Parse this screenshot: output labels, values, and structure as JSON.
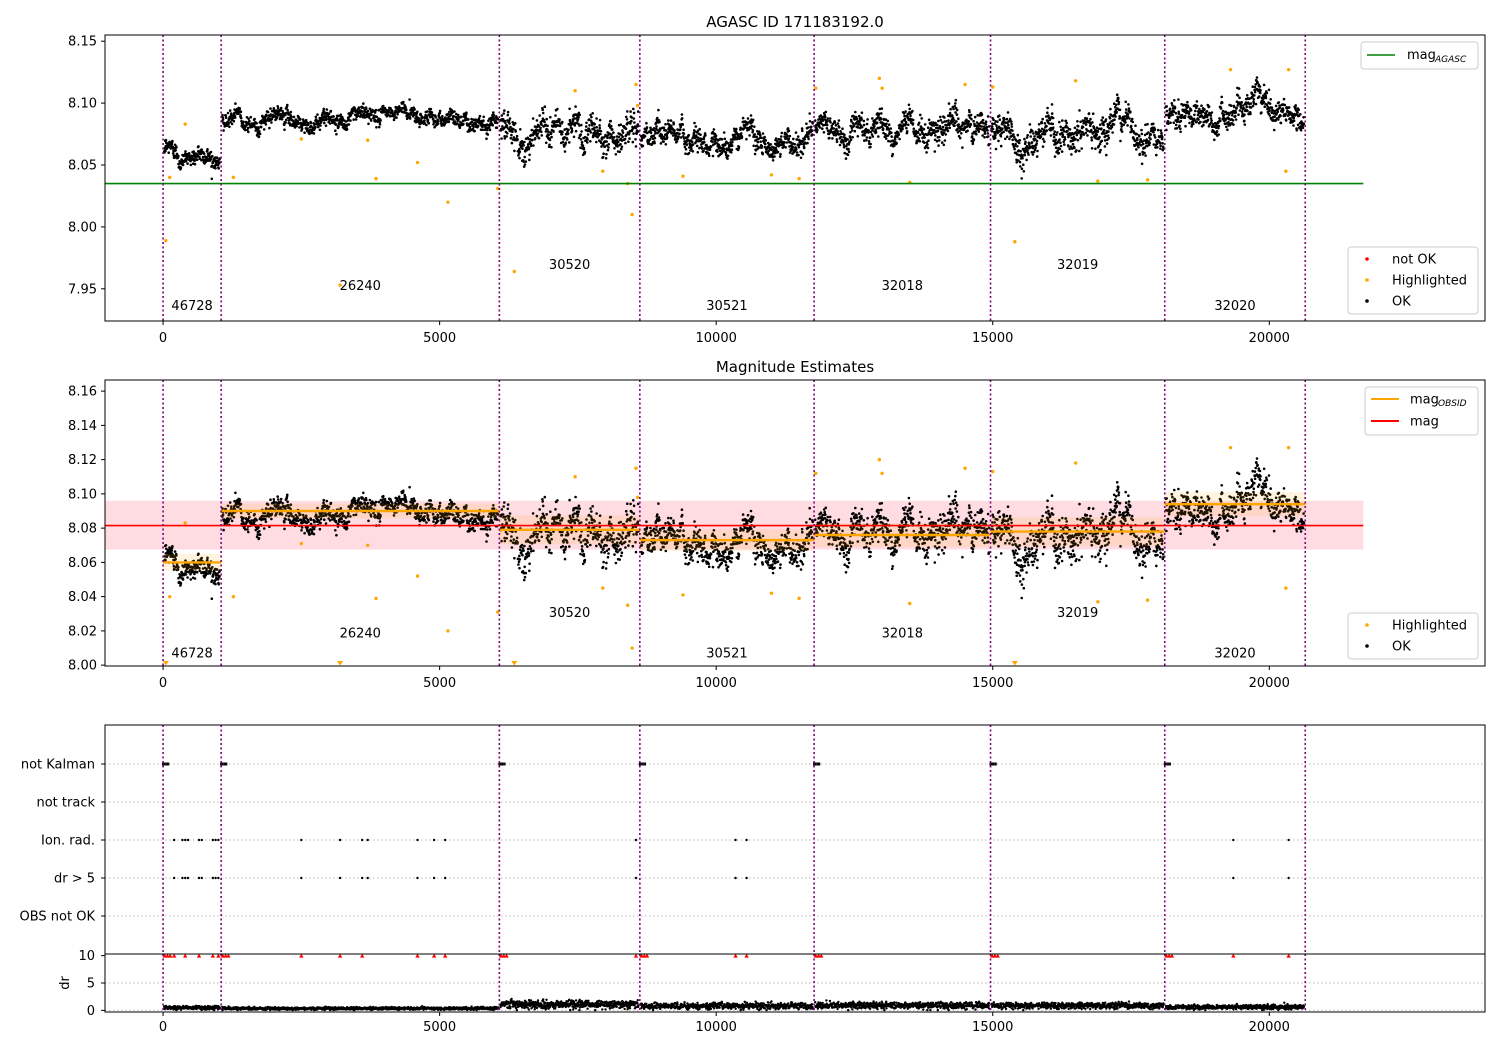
{
  "figure": {
    "title": "AGASC ID 171183192.0"
  },
  "colors": {
    "ok": "#000000",
    "highlighted": "#ffa500",
    "not_ok": "#ff0000",
    "obsid_line": "#800080",
    "mag_agasc": "#008000",
    "mag_obsid": "#ffa500",
    "mag": "#ff0000",
    "band": "#ffc0cb"
  },
  "chart_data": [
    {
      "type": "scatter",
      "title": "AGASC ID 171183192.0",
      "xlim": [
        -1050,
        23900
      ],
      "ylim": [
        7.924,
        8.155
      ],
      "xticks": [
        0,
        5000,
        10000,
        15000,
        20000
      ],
      "yticks": [
        7.95,
        8.0,
        8.05,
        8.1,
        8.15
      ],
      "obsid_boundaries": [
        0,
        1050,
        6080,
        8620,
        11770,
        14960,
        18110,
        20650
      ],
      "segments": [
        {
          "obsid": "46728",
          "x0": 0,
          "x1": 1050,
          "mean": 8.06,
          "spread": 0.007,
          "trend": 0
        },
        {
          "obsid": "26240",
          "x0": 1050,
          "x1": 6080,
          "mean": 8.089,
          "spread": 0.006,
          "trend": 0.008
        },
        {
          "obsid": "30520",
          "x0": 6080,
          "x1": 8620,
          "mean": 8.078,
          "spread": 0.012,
          "trend": -0.006
        },
        {
          "obsid": "30521",
          "x0": 8620,
          "x1": 11770,
          "mean": 8.073,
          "spread": 0.009,
          "trend": 0
        },
        {
          "obsid": "32018",
          "x0": 11770,
          "x1": 14960,
          "mean": 8.077,
          "spread": 0.01,
          "trend": 0
        },
        {
          "obsid": "32019",
          "x0": 14960,
          "x1": 18110,
          "mean": 8.078,
          "spread": 0.012,
          "trend": 0
        },
        {
          "obsid": "32020",
          "x0": 18110,
          "x1": 20650,
          "mean": 8.094,
          "spread": 0.01,
          "trend": 0
        }
      ],
      "obsid_labels": [
        {
          "text": "46728",
          "x": 525,
          "y": 7.933
        },
        {
          "text": "26240",
          "x": 3565,
          "y": 7.949
        },
        {
          "text": "30520",
          "x": 7350,
          "y": 7.966
        },
        {
          "text": "30521",
          "x": 10195,
          "y": 7.933
        },
        {
          "text": "32018",
          "x": 13365,
          "y": 7.949
        },
        {
          "text": "32019",
          "x": 16535,
          "y": 7.966
        },
        {
          "text": "32020",
          "x": 19380,
          "y": 7.933
        }
      ],
      "lines": [
        {
          "name": "mag_AGASC",
          "y": 8.035,
          "x0": -1050,
          "x1": 21700,
          "color": "#008000"
        }
      ],
      "highlighted_points": [
        [
          50,
          7.989
        ],
        [
          120,
          8.04
        ],
        [
          400,
          8.083
        ],
        [
          1270,
          8.04
        ],
        [
          2500,
          8.071
        ],
        [
          3200,
          7.953
        ],
        [
          3700,
          8.07
        ],
        [
          3850,
          8.039
        ],
        [
          4600,
          8.052
        ],
        [
          5150,
          8.02
        ],
        [
          6050,
          8.031
        ],
        [
          6350,
          7.964
        ],
        [
          7450,
          8.11
        ],
        [
          7950,
          8.045
        ],
        [
          8400,
          8.035
        ],
        [
          8480,
          8.01
        ],
        [
          8550,
          8.115
        ],
        [
          8580,
          8.098
        ],
        [
          9400,
          8.041
        ],
        [
          11000,
          8.042
        ],
        [
          11500,
          8.039
        ],
        [
          11800,
          8.112
        ],
        [
          12950,
          8.12
        ],
        [
          13000,
          8.112
        ],
        [
          13500,
          8.036
        ],
        [
          14500,
          8.115
        ],
        [
          15000,
          8.113
        ],
        [
          15400,
          7.988
        ],
        [
          16500,
          8.118
        ],
        [
          16900,
          8.037
        ],
        [
          17800,
          8.038
        ],
        [
          19300,
          8.127
        ],
        [
          20300,
          8.045
        ],
        [
          20350,
          8.127
        ]
      ],
      "legend": {
        "position": "top-right",
        "entries": [
          {
            "label": "mag",
            "subscript": "AGASC",
            "color": "#008000"
          }
        ]
      },
      "legend2": {
        "position": "lower-right",
        "entries": [
          {
            "label": "not OK",
            "color": "#ff0000"
          },
          {
            "label": "Highlighted",
            "color": "#ffa500"
          },
          {
            "label": "OK",
            "color": "#000000"
          }
        ]
      }
    },
    {
      "type": "scatter",
      "title": "Magnitude Estimates",
      "xlim": [
        -1050,
        23900
      ],
      "ylim": [
        7.9995,
        8.1665
      ],
      "xticks": [
        0,
        5000,
        10000,
        15000,
        20000
      ],
      "yticks": [
        8.0,
        8.02,
        8.04,
        8.06,
        8.08,
        8.1,
        8.12,
        8.14,
        8.16
      ],
      "mag": 8.0815,
      "mag_band": [
        8.0675,
        8.096
      ],
      "obsid_mags": [
        8.06,
        8.09,
        8.079,
        8.073,
        8.076,
        8.078,
        8.094
      ],
      "clipped_markers": [
        [
          50,
          8.0
        ],
        [
          3200,
          8.0
        ],
        [
          6350,
          8.0
        ],
        [
          15400,
          8.0
        ]
      ],
      "obsid_labels": [
        {
          "text": "46728",
          "x": 525,
          "y": 8.0045
        },
        {
          "text": "26240",
          "x": 3565,
          "y": 8.016
        },
        {
          "text": "30520",
          "x": 7350,
          "y": 8.028
        },
        {
          "text": "30521",
          "x": 10195,
          "y": 8.0045
        },
        {
          "text": "32018",
          "x": 13365,
          "y": 8.016
        },
        {
          "text": "32019",
          "x": 16535,
          "y": 8.028
        },
        {
          "text": "32020",
          "x": 19380,
          "y": 8.0045
        }
      ],
      "legend": {
        "position": "top-right",
        "entries": [
          {
            "label": "mag",
            "subscript": "OBSID",
            "color": "#ffa500"
          },
          {
            "label": "mag",
            "subscript": "",
            "color": "#ff0000"
          }
        ]
      },
      "legend2": {
        "position": "lower-right",
        "entries": [
          {
            "label": "Highlighted",
            "color": "#ffa500"
          },
          {
            "label": "OK",
            "color": "#000000"
          }
        ]
      }
    },
    {
      "type": "scatter",
      "title": "",
      "xlim": [
        -1050,
        23900
      ],
      "flag_rows": [
        "not Kalman",
        "not track",
        "Ion. rad.",
        "dr > 5",
        "OBS not OK"
      ],
      "ion_rad_times": [
        200,
        350,
        400,
        450,
        650,
        700,
        900,
        950,
        1000,
        2500,
        3200,
        3600,
        3700,
        4600,
        4900,
        5100,
        8550,
        10350,
        10550,
        19350,
        20350
      ],
      "dr_gt5_times": [
        200,
        350,
        400,
        450,
        650,
        700,
        900,
        950,
        1000,
        2500,
        3200,
        3600,
        3700,
        4600,
        4900,
        5100,
        8550,
        10350,
        10550,
        19350,
        20350
      ]
    },
    {
      "type": "scatter",
      "title": "",
      "ylabel": "dr",
      "xlim": [
        -1050,
        23900
      ],
      "ylim": [
        -0.3,
        10.3
      ],
      "yticks": [
        0,
        5,
        10
      ],
      "xticks": [
        0,
        5000,
        10000,
        15000,
        20000
      ],
      "dr_levels": [
        0.5,
        0.35,
        1.1,
        0.8,
        0.9,
        0.85,
        0.6
      ],
      "dr_outlier_times": [
        200,
        400,
        650,
        900,
        1000,
        2500,
        3200,
        3600,
        4600,
        4900,
        5100,
        8550,
        10350,
        10550,
        19350,
        20350
      ]
    }
  ]
}
